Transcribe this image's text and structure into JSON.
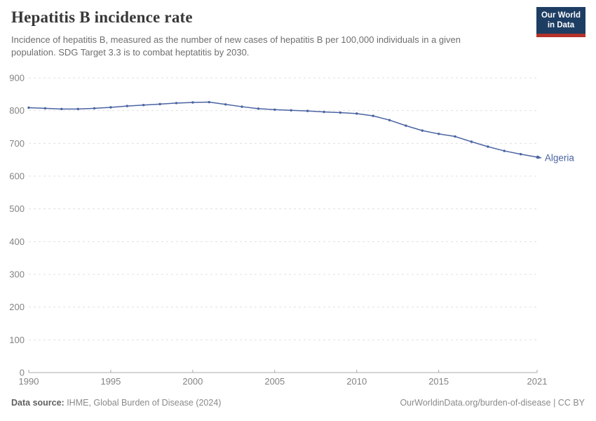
{
  "header": {
    "title": "Hepatitis B incidence rate",
    "subtitle": "Incidence of hepatitis B, measured as the number of new cases of hepatitis B per 100,000 individuals in a given population. SDG Target 3.3 is to combat heptatitis by 2030.",
    "logo": {
      "line1": "Our World",
      "line2": "in Data"
    }
  },
  "chart_data": {
    "type": "line",
    "title": "Hepatitis B incidence rate",
    "entity": "Algeria",
    "x": [
      1990,
      1991,
      1992,
      1993,
      1994,
      1995,
      1996,
      1997,
      1998,
      1999,
      2000,
      2001,
      2002,
      2003,
      2004,
      2005,
      2006,
      2007,
      2008,
      2009,
      2010,
      2011,
      2012,
      2013,
      2014,
      2015,
      2016,
      2017,
      2018,
      2019,
      2020,
      2021
    ],
    "series": [
      {
        "name": "Algeria",
        "color": "#4a63a2",
        "values": [
          809,
          807,
          805,
          805,
          807,
          810,
          814,
          817,
          820,
          823,
          825,
          826,
          819,
          812,
          806,
          803,
          801,
          799,
          796,
          794,
          791,
          784,
          771,
          754,
          739,
          729,
          721,
          705,
          690,
          677,
          667,
          658
        ]
      }
    ],
    "x_ticks": [
      1990,
      1995,
      2000,
      2005,
      2010,
      2015,
      2021
    ],
    "y_ticks": [
      0,
      100,
      200,
      300,
      400,
      500,
      600,
      700,
      800,
      900
    ],
    "xlim": [
      1990,
      2021
    ],
    "ylim": [
      0,
      900
    ],
    "grid": "horizontal-dashed",
    "legend": "end-of-line-label",
    "colors": {
      "gridline": "#e0e0e0",
      "axis": "#a9a9a9",
      "tick_label": "#838383"
    }
  },
  "footer": {
    "source_label": "Data source:",
    "source_value": " IHME, Global Burden of Disease (2024)",
    "credit": "OurWorldinData.org/burden-of-disease | CC BY"
  }
}
